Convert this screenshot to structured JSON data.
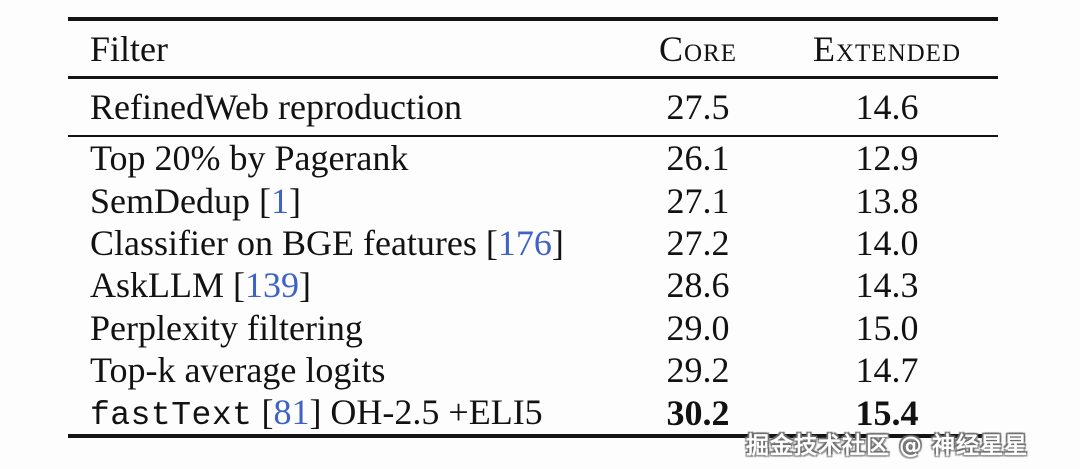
{
  "table": {
    "header": {
      "filter": "Filter",
      "core": "Core",
      "extended": "Extended"
    },
    "rows": [
      {
        "mono": "",
        "pre": "RefinedWeb reproduction",
        "cite": "",
        "post": "",
        "core": "27.5",
        "extended": "14.6"
      },
      {
        "mono": "",
        "pre": "Top 20% by Pagerank",
        "cite": "",
        "post": "",
        "core": "26.1",
        "extended": "12.9"
      },
      {
        "mono": "",
        "pre": "SemDedup [",
        "cite": "1",
        "post": "]",
        "core": "27.1",
        "extended": "13.8"
      },
      {
        "mono": "",
        "pre": "Classifier on BGE features [",
        "cite": "176",
        "post": "]",
        "core": "27.2",
        "extended": "14.0"
      },
      {
        "mono": "",
        "pre": "AskLLM [",
        "cite": "139",
        "post": "]",
        "core": "28.6",
        "extended": "14.3"
      },
      {
        "mono": "",
        "pre": "Perplexity filtering",
        "cite": "",
        "post": "",
        "core": "29.0",
        "extended": "15.0"
      },
      {
        "mono": "",
        "pre": "Top-k average logits",
        "cite": "",
        "post": "",
        "core": "29.2",
        "extended": "14.7"
      },
      {
        "mono": "fastText",
        "pre": " [",
        "cite": "81",
        "post": "] OH-2.5 +ELI5",
        "core": "30.2",
        "extended": "15.4"
      }
    ]
  },
  "colors": {
    "citation_blue": "#3e62c8",
    "text": "#121212",
    "background": "#fdfdfd"
  },
  "watermark": "掘金技术社区 @ 神经星星"
}
